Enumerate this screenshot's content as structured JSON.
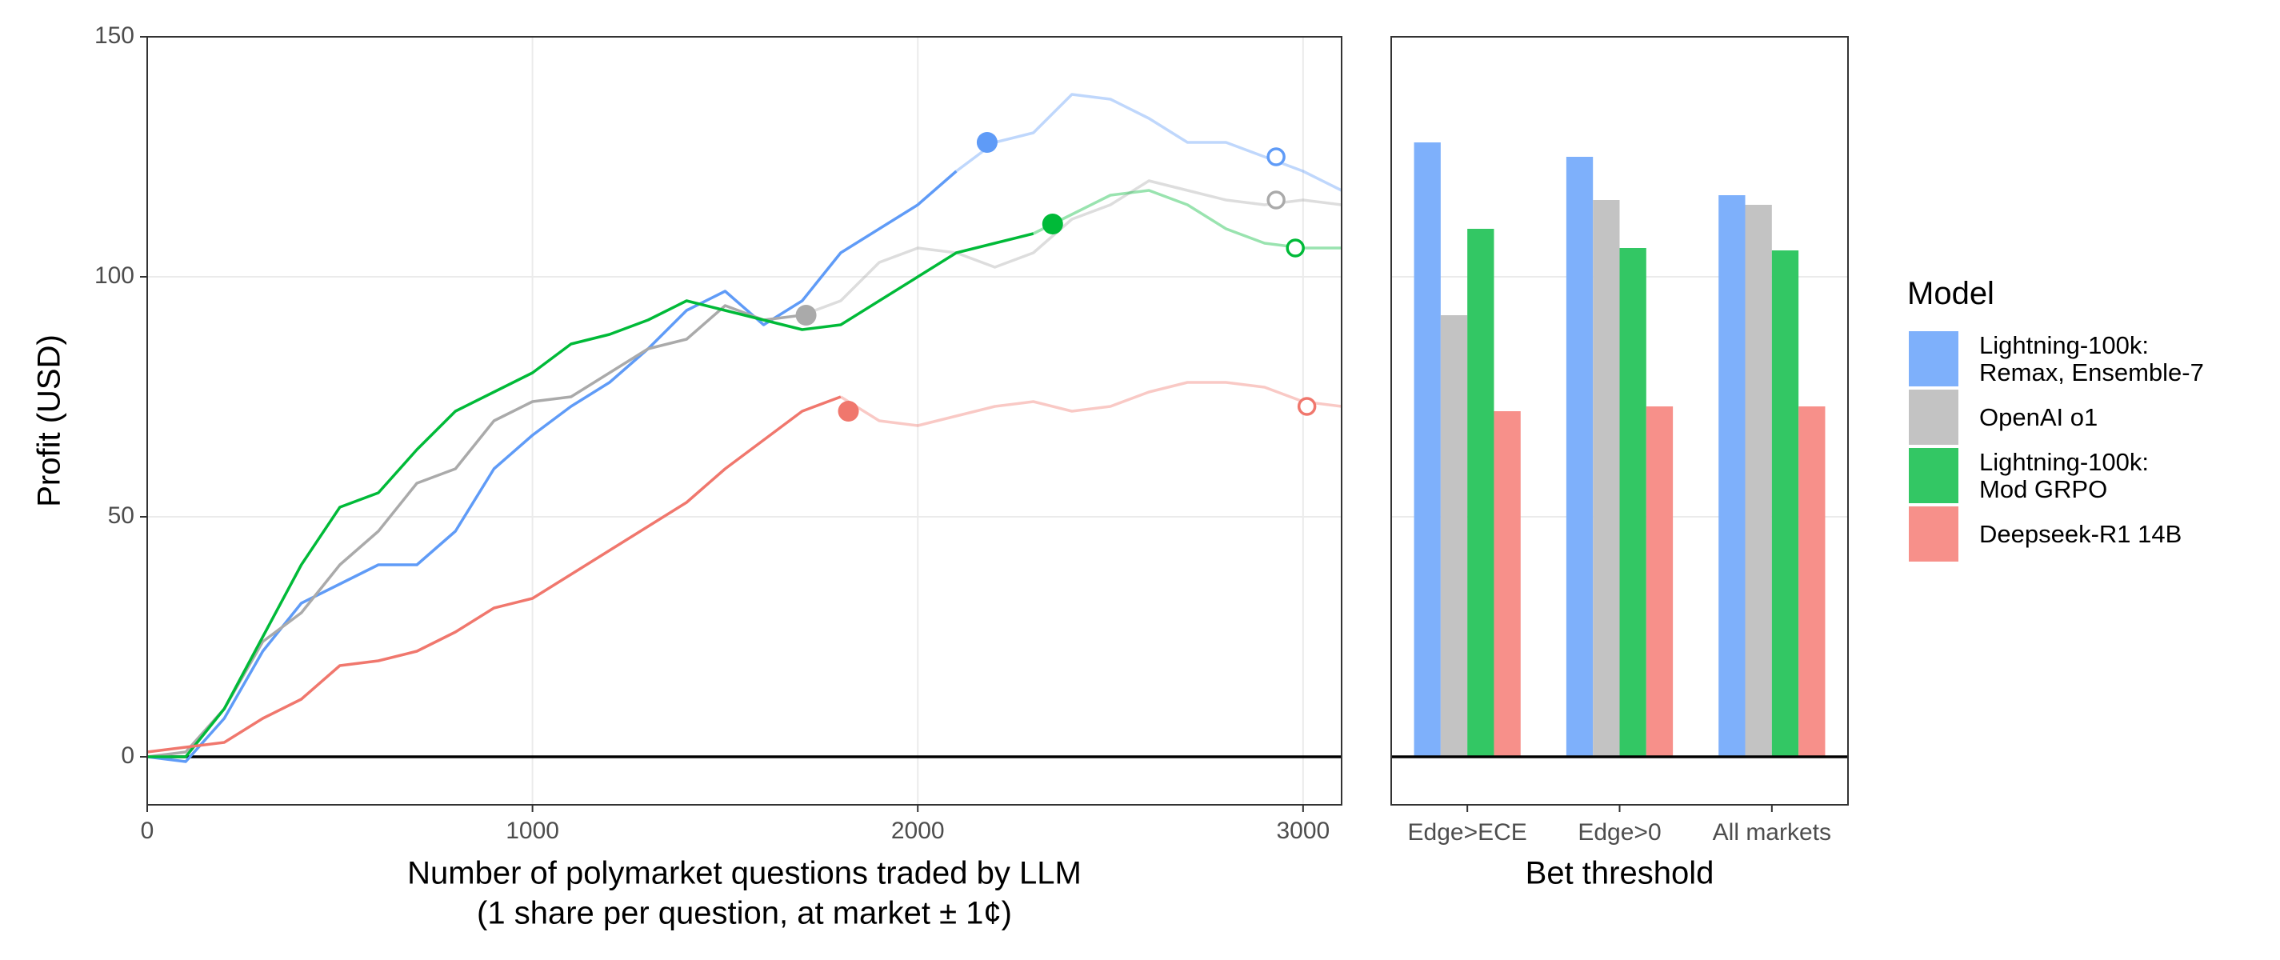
{
  "chart_data": [
    {
      "type": "line",
      "xlabel": [
        "Number of polymarket questions traded by LLM",
        "(1 share per question, at market ± 1¢)"
      ],
      "ylabel": "Profit (USD)",
      "xlim": [
        0,
        3100
      ],
      "xticks": [
        0,
        1000,
        2000,
        3000
      ],
      "ylim": [
        -10,
        150
      ],
      "yticks": [
        0,
        50,
        100,
        150
      ],
      "grid": true,
      "show_ytick_labels": true,
      "x": [
        0,
        100,
        200,
        300,
        400,
        500,
        600,
        700,
        800,
        900,
        1000,
        1100,
        1200,
        1300,
        1400,
        1500,
        1600,
        1700,
        1800,
        1900,
        2000,
        2100,
        2200,
        2300,
        2400,
        2500,
        2600,
        2700,
        2800,
        2900,
        3000,
        3100
      ],
      "series": [
        {
          "name": "Lightning-100k:\nRemax, Ensemble-7",
          "color": "#5f9bf7",
          "values": [
            0,
            -1,
            8,
            22,
            32,
            36,
            40,
            40,
            47,
            60,
            67,
            73,
            78,
            85,
            93,
            97,
            90,
            95,
            105,
            110,
            115,
            122,
            128,
            130,
            138,
            137,
            133,
            128,
            128,
            125,
            122,
            118
          ],
          "point": {
            "x": 2180,
            "y": 128
          },
          "end_point": {
            "x": 2930,
            "y": 125
          }
        },
        {
          "name": "OpenAI o1",
          "color": "#aaaaaa",
          "values": [
            0,
            1,
            10,
            24,
            30,
            40,
            47,
            57,
            60,
            70,
            74,
            75,
            80,
            85,
            87,
            94,
            91,
            92,
            95,
            103,
            106,
            105,
            102,
            105,
            112,
            115,
            120,
            118,
            116,
            115,
            116,
            115
          ],
          "point": {
            "x": 1710,
            "y": 92
          },
          "end_point": {
            "x": 2930,
            "y": 116
          }
        },
        {
          "name": "Lightning-100k:\nMod GRPO",
          "color": "#00ba38",
          "values": [
            0,
            0,
            10,
            25,
            40,
            52,
            55,
            64,
            72,
            76,
            80,
            86,
            88,
            91,
            95,
            93,
            91,
            89,
            90,
            95,
            100,
            105,
            107,
            109,
            113,
            117,
            118,
            115,
            110,
            107,
            106,
            106
          ],
          "point": {
            "x": 2350,
            "y": 111
          },
          "end_point": {
            "x": 2980,
            "y": 106
          }
        },
        {
          "name": "Deepseek-R1 14B",
          "color": "#f0776d",
          "values": [
            1,
            2,
            3,
            8,
            12,
            19,
            20,
            22,
            26,
            31,
            33,
            38,
            43,
            48,
            53,
            60,
            66,
            72,
            75,
            70,
            69,
            71,
            73,
            74,
            72,
            73,
            76,
            78,
            78,
            77,
            74,
            73
          ],
          "point": {
            "x": 1820,
            "y": 72
          },
          "end_point": {
            "x": 3010,
            "y": 73
          }
        }
      ]
    },
    {
      "type": "bar",
      "xlabel": [
        "Bet threshold"
      ],
      "legend_title": "Model",
      "ylim": [
        -10,
        150
      ],
      "yticks": [
        0,
        50,
        100,
        150
      ],
      "grid": true,
      "show_ytick_labels": false,
      "categories": [
        "Edge>ECE",
        "Edge>0",
        "All markets"
      ],
      "series": [
        {
          "name": "Lightning-100k:\nRemax, Ensemble-7",
          "color": "#7eb0fb",
          "values": [
            128,
            125,
            117
          ]
        },
        {
          "name": "OpenAI o1",
          "color": "#c3c3c3",
          "values": [
            92,
            116,
            115
          ]
        },
        {
          "name": "Lightning-100k:\nMod GRPO",
          "color": "#33c764",
          "values": [
            110,
            106,
            105.5
          ]
        },
        {
          "name": "Deepseek-R1 14B",
          "color": "#f7908a",
          "values": [
            72,
            73,
            73
          ]
        }
      ]
    }
  ]
}
